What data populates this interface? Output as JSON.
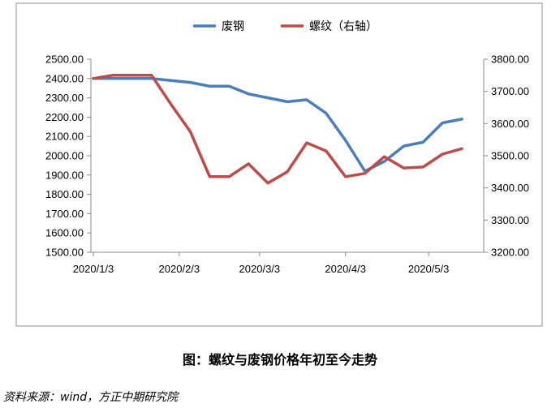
{
  "caption": "图：螺纹与废钢价格年初至今走势",
  "source": "资料来源：wind，方正中期研究院",
  "colors": {
    "scrap": "#4A7EBB",
    "rebar": "#BE4B48",
    "axis": "#898989",
    "frame": "#8C8C8C"
  },
  "chart_data": {
    "type": "line",
    "title": "",
    "x": [
      "2020-01-03",
      "2020-01-10",
      "2020-01-17",
      "2020-01-24",
      "2020-01-31",
      "2020-02-07",
      "2020-02-14",
      "2020-02-21",
      "2020-02-28",
      "2020-03-06",
      "2020-03-13",
      "2020-03-20",
      "2020-03-27",
      "2020-04-03",
      "2020-04-10",
      "2020-04-17",
      "2020-04-24",
      "2020-05-01",
      "2020-05-08",
      "2020-05-15",
      "2020-05-22"
    ],
    "x_tick_labels": [
      "2020/1/3",
      "2020/2/3",
      "2020/3/3",
      "2020/4/3",
      "2020/5/3"
    ],
    "x_tick_dates": [
      "2020-01-03",
      "2020-02-03",
      "2020-03-03",
      "2020-04-03",
      "2020-05-03"
    ],
    "y_left": {
      "lim": [
        1500,
        2500
      ],
      "ticks": [
        "1500.00",
        "1600.00",
        "1700.00",
        "1800.00",
        "1900.00",
        "2000.00",
        "2100.00",
        "2200.00",
        "2300.00",
        "2400.00",
        "2500.00"
      ]
    },
    "y_right": {
      "lim": [
        3200,
        3800
      ],
      "ticks": [
        "3200.00",
        "3300.00",
        "3400.00",
        "3500.00",
        "3600.00",
        "3700.00",
        "3800.00"
      ]
    },
    "legend_position": "top",
    "series": [
      {
        "name": "废钢",
        "axis": "left",
        "color": "#4A7EBB",
        "values": [
          2400,
          2400,
          2400,
          2400,
          2390,
          2380,
          2360,
          2360,
          2320,
          2300,
          2280,
          2290,
          2220,
          2080,
          1920,
          1970,
          2050,
          2070,
          2170,
          2190,
          null
        ]
      },
      {
        "name": "螺纹（右轴）",
        "axis": "right",
        "color": "#BE4B48",
        "values": [
          3740,
          3750,
          3750,
          3750,
          3660,
          3575,
          3435,
          3435,
          3475,
          3415,
          3450,
          3540,
          3515,
          3435,
          3445,
          3497,
          3462,
          3465,
          3505,
          3522,
          null
        ]
      }
    ]
  }
}
